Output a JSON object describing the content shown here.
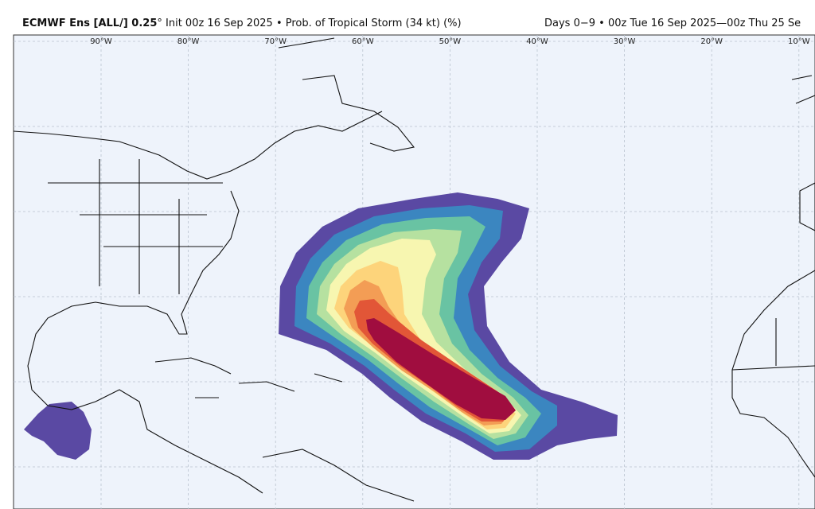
{
  "header": {
    "title_bold": "ECMWF Ens [ALL/] 0.25",
    "title_rest": "° Init 00z 16 Sep 2025 • Prob. of Tropical Storm (34 kt) (%)",
    "right": "Days 0−9 • 00z Tue 16 Sep 2025—00z Thu 25 Se"
  },
  "map": {
    "longitude_labels": [
      "90°W",
      "80°W",
      "70°W",
      "60°W",
      "50°W",
      "40°W",
      "30°W",
      "20°W",
      "10°W"
    ]
  }
}
